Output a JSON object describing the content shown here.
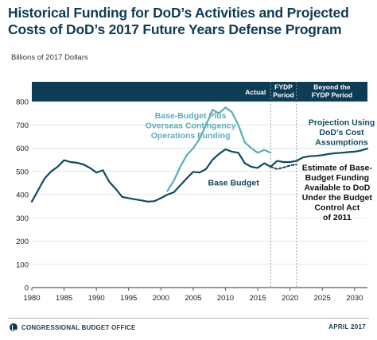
{
  "title": "Historical Funding for DoD’s Activities and Projected Costs of DoD’s 2017 Future Years Defense Program",
  "footer": {
    "org": "CONGRESSIONAL BUDGET OFFICE",
    "date": "APRIL 2017"
  },
  "colors": {
    "base": "#0f4b5f",
    "oco": "#5aaeb8",
    "header_band": "#0f3c55",
    "period_text": "#ffffff"
  },
  "chart_data": {
    "type": "line",
    "ylabel": "Billions of 2017 Dollars",
    "xlim": [
      1980,
      2032
    ],
    "ylim": [
      0,
      800
    ],
    "x_ticks": [
      1980,
      1985,
      1990,
      1995,
      2000,
      2005,
      2010,
      2015,
      2020,
      2025,
      2030
    ],
    "y_ticks": [
      0,
      100,
      200,
      300,
      400,
      500,
      600,
      700,
      800
    ],
    "grid": true,
    "periods": [
      {
        "label": "Actual",
        "start": 1980,
        "end": 2017
      },
      {
        "label": "FYDP Period",
        "start": 2017,
        "end": 2021
      },
      {
        "label": "Beyond the FYDP Period",
        "start": 2021,
        "end": 2032
      }
    ],
    "series": [
      {
        "name": "Base-Budget Plus Overseas Contingency Operations Funding",
        "style": "solid",
        "color": "#5aaeb8",
        "x": [
          2001,
          2002,
          2003,
          2004,
          2005,
          2006,
          2007,
          2008,
          2009,
          2010,
          2011,
          2012,
          2013,
          2014,
          2015,
          2016,
          2017
        ],
        "y": [
          415,
          460,
          520,
          570,
          600,
          640,
          700,
          765,
          750,
          775,
          755,
          700,
          625,
          600,
          580,
          592,
          580
        ]
      },
      {
        "name": "Base Budget",
        "style": "solid",
        "color": "#0f4b5f",
        "x": [
          1980,
          1981,
          1982,
          1983,
          1984,
          1985,
          1986,
          1987,
          1988,
          1989,
          1990,
          1991,
          1992,
          1993,
          1994,
          1995,
          1996,
          1997,
          1998,
          1999,
          2000,
          2001,
          2002,
          2003,
          2004,
          2005,
          2006,
          2007,
          2008,
          2009,
          2010,
          2011,
          2012,
          2013,
          2014,
          2015,
          2016,
          2017
        ],
        "y": [
          370,
          420,
          470,
          500,
          520,
          548,
          540,
          537,
          530,
          515,
          495,
          505,
          455,
          425,
          390,
          385,
          380,
          375,
          370,
          372,
          385,
          400,
          410,
          440,
          470,
          498,
          495,
          510,
          550,
          575,
          595,
          585,
          580,
          535,
          520,
          515,
          535,
          520
        ]
      },
      {
        "name": "Projection Using DoD’s Cost Assumptions",
        "style": "solid",
        "color": "#0f4b5f",
        "x": [
          2017,
          2018,
          2019,
          2020,
          2021,
          2022,
          2023,
          2024,
          2025,
          2026,
          2027,
          2028,
          2029,
          2030,
          2031,
          2032
        ],
        "y": [
          520,
          545,
          540,
          540,
          545,
          560,
          565,
          567,
          570,
          575,
          578,
          580,
          583,
          585,
          590,
          598
        ]
      },
      {
        "name": "Estimate of Base-Budget Funding Available to DoD Under the Budget Control Act of 2011",
        "style": "dashed",
        "color": "#0f4b5f",
        "x": [
          2017,
          2018,
          2019,
          2020,
          2021
        ],
        "y": [
          520,
          510,
          517,
          525,
          530
        ]
      }
    ],
    "annotations": [
      {
        "text": [
          "Base-Budget Plus",
          "Overseas Contingency",
          "Operations Funding"
        ],
        "color": "#5aaeb8",
        "anchor": "middle",
        "pos": [
          2004.6,
          728
        ]
      },
      {
        "text": [
          "Base Budget"
        ],
        "color": "#0f4b5f",
        "anchor": "start",
        "pos": [
          2007.3,
          440
        ]
      },
      {
        "text": [
          "Projection Using",
          "DoD’s Cost",
          "Assumptions"
        ],
        "color": "#0f4b5f",
        "anchor": "middle",
        "pos": [
          2028,
          700
        ]
      },
      {
        "text": [
          "Estimate of Base-",
          "Budget Funding",
          "Available to DoD",
          "Under the Budget",
          "Control Act",
          "of 2011"
        ],
        "color": "#111111",
        "anchor": "middle",
        "pos": [
          2027.3,
          505
        ]
      }
    ]
  }
}
